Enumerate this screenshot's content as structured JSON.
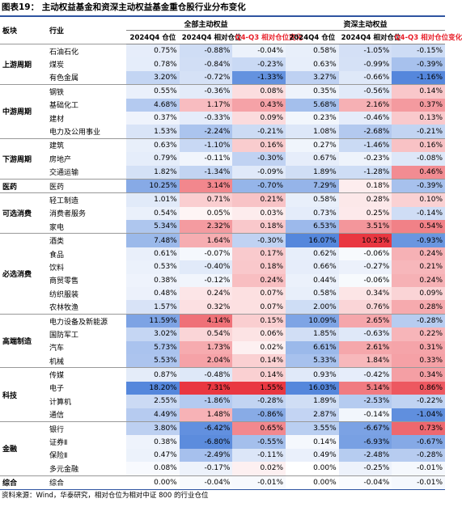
{
  "title": "图表19： 主动权益基金和资深主动权益基金重仓股行业分布变化",
  "table": {
    "group_header": [
      "板块",
      "行业",
      "全部主动权益",
      "资深主动权益"
    ],
    "header": [
      "2024Q4 仓位",
      "2024Q4 相对仓位",
      "Q4-Q3 相对仓位变化",
      "2024Q4 仓位",
      "2024Q4 相对仓位",
      "Q4-Q3 相对仓位变化"
    ],
    "groups": [
      {
        "sector": "上游周期",
        "rows": [
          [
            "石油石化",
            "0.75%",
            "-0.88%",
            "-0.04%",
            "0.58%",
            "-1.05%",
            "-0.15%"
          ],
          [
            "煤炭",
            "0.78%",
            "-0.84%",
            "-0.23%",
            "0.63%",
            "-0.99%",
            "-0.39%"
          ],
          [
            "有色金属",
            "3.20%",
            "-0.72%",
            "-1.33%",
            "3.27%",
            "-0.66%",
            "-1.16%"
          ]
        ]
      },
      {
        "sector": "中游周期",
        "rows": [
          [
            "钢铁",
            "0.55%",
            "-0.36%",
            "0.08%",
            "0.35%",
            "-0.56%",
            "0.14%"
          ],
          [
            "基础化工",
            "4.68%",
            "1.17%",
            "0.43%",
            "5.68%",
            "2.16%",
            "0.37%"
          ],
          [
            "建材",
            "0.37%",
            "-0.33%",
            "0.09%",
            "0.23%",
            "-0.46%",
            "0.13%"
          ],
          [
            "电力及公用事业",
            "1.53%",
            "-2.24%",
            "-0.21%",
            "1.08%",
            "-2.68%",
            "-0.21%"
          ]
        ]
      },
      {
        "sector": "下游周期",
        "rows": [
          [
            "建筑",
            "0.63%",
            "-1.10%",
            "0.16%",
            "0.27%",
            "-1.46%",
            "0.16%"
          ],
          [
            "房地产",
            "0.79%",
            "-0.11%",
            "-0.30%",
            "0.67%",
            "-0.23%",
            "-0.08%"
          ],
          [
            "交通运输",
            "1.82%",
            "-1.34%",
            "-0.09%",
            "1.89%",
            "-1.28%",
            "0.46%"
          ]
        ]
      },
      {
        "sector": "医药",
        "rows": [
          [
            "医药",
            "10.25%",
            "3.14%",
            "-0.70%",
            "7.29%",
            "0.18%",
            "-0.39%"
          ]
        ]
      },
      {
        "sector": "可选消费",
        "rows": [
          [
            "轻工制造",
            "1.01%",
            "0.71%",
            "0.21%",
            "0.58%",
            "0.28%",
            "0.10%"
          ],
          [
            "消费者服务",
            "0.54%",
            "0.05%",
            "0.03%",
            "0.73%",
            "0.25%",
            "-0.14%"
          ],
          [
            "家电",
            "5.34%",
            "2.32%",
            "0.18%",
            "6.53%",
            "3.51%",
            "0.54%"
          ]
        ]
      },
      {
        "sector": "必选消费",
        "rows": [
          [
            "酒类",
            "7.48%",
            "1.64%",
            "-0.30%",
            "16.07%",
            "10.23%",
            "-0.93%"
          ],
          [
            "食品",
            "0.61%",
            "-0.07%",
            "0.17%",
            "0.62%",
            "-0.06%",
            "0.24%"
          ],
          [
            "饮料",
            "0.53%",
            "-0.40%",
            "0.18%",
            "0.66%",
            "-0.27%",
            "0.21%"
          ],
          [
            "商贸零售",
            "0.38%",
            "-0.12%",
            "0.24%",
            "0.44%",
            "-0.06%",
            "0.24%"
          ],
          [
            "纺织服装",
            "0.48%",
            "0.24%",
            "0.07%",
            "0.58%",
            "0.34%",
            "0.09%"
          ],
          [
            "农林牧渔",
            "1.57%",
            "0.32%",
            "0.07%",
            "2.00%",
            "0.76%",
            "0.28%"
          ]
        ]
      },
      {
        "sector": "高端制造",
        "rows": [
          [
            "电力设备及新能源",
            "11.59%",
            "4.14%",
            "0.15%",
            "10.09%",
            "2.65%",
            "-0.28%"
          ],
          [
            "国防军工",
            "3.02%",
            "0.54%",
            "0.06%",
            "1.85%",
            "-0.63%",
            "0.22%"
          ],
          [
            "汽车",
            "5.73%",
            "1.73%",
            "0.02%",
            "6.61%",
            "2.61%",
            "0.31%"
          ],
          [
            "机械",
            "5.53%",
            "2.04%",
            "0.14%",
            "5.33%",
            "1.84%",
            "0.33%"
          ]
        ]
      },
      {
        "sector": "科技",
        "rows": [
          [
            "传媒",
            "0.87%",
            "-0.48%",
            "0.14%",
            "0.93%",
            "-0.42%",
            "0.34%"
          ],
          [
            "电子",
            "18.20%",
            "7.31%",
            "1.55%",
            "16.03%",
            "5.14%",
            "0.86%"
          ],
          [
            "计算机",
            "2.55%",
            "-1.86%",
            "-0.28%",
            "1.89%",
            "-2.53%",
            "-0.22%"
          ],
          [
            "通信",
            "4.49%",
            "1.48%",
            "-0.86%",
            "2.87%",
            "-0.14%",
            "-1.04%"
          ]
        ]
      },
      {
        "sector": "金融",
        "rows": [
          [
            "银行",
            "3.80%",
            "-6.42%",
            "0.65%",
            "3.55%",
            "-6.67%",
            "0.73%"
          ],
          [
            "证券Ⅱ",
            "0.38%",
            "-6.80%",
            "-0.55%",
            "0.14%",
            "-6.93%",
            "-0.67%"
          ],
          [
            "保险Ⅱ",
            "0.47%",
            "-2.49%",
            "-0.11%",
            "0.49%",
            "-2.48%",
            "-0.28%"
          ],
          [
            "多元金融",
            "0.08%",
            "-0.17%",
            "0.02%",
            "0.00%",
            "-0.25%",
            "-0.01%"
          ]
        ]
      },
      {
        "sector": "综合",
        "rows": [
          [
            "综合",
            "0.00%",
            "-0.04%",
            "-0.01%",
            "0.00%",
            "-0.04%",
            "-0.01%"
          ]
        ]
      }
    ]
  },
  "source": "资料来源：Wind，华泰研究，相对仓位为相对中证 800 的行业仓位"
}
